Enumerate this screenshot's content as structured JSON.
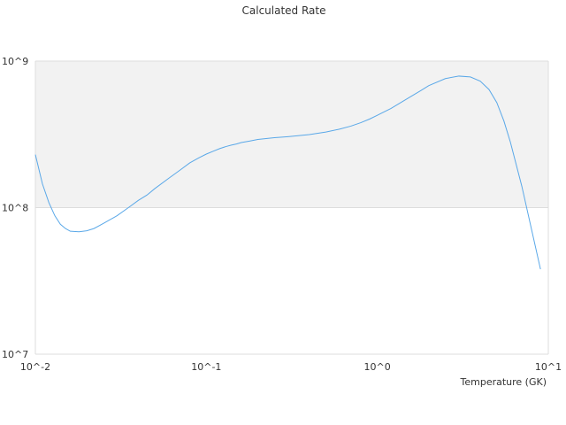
{
  "chart_data": {
    "type": "line",
    "title": "Calculated Rate",
    "xlabel": "Temperature (GK)",
    "ylabel": "",
    "x_scale": "log",
    "y_scale": "log",
    "xlim": [
      0.01,
      10
    ],
    "ylim": [
      10000000,
      1000000000
    ],
    "x_ticks": [
      {
        "value": 0.01,
        "label": "10^-2"
      },
      {
        "value": 0.1,
        "label": "10^-1"
      },
      {
        "value": 1,
        "label": "10^0"
      },
      {
        "value": 10,
        "label": "10^1"
      }
    ],
    "y_ticks": [
      {
        "value": 10000000,
        "label": "10^7"
      },
      {
        "value": 100000000,
        "label": "10^8"
      },
      {
        "value": 1000000000,
        "label": "10^9"
      }
    ],
    "shaded_band": {
      "from": 100000000,
      "to": 1000000000,
      "color": "#f2f2f2"
    },
    "series": [
      {
        "color": "#5aa8e8",
        "x": [
          0.01,
          0.011,
          0.012,
          0.013,
          0.014,
          0.015,
          0.016,
          0.018,
          0.02,
          0.022,
          0.025,
          0.03,
          0.035,
          0.04,
          0.045,
          0.05,
          0.06,
          0.07,
          0.08,
          0.09,
          0.1,
          0.11,
          0.12,
          0.13,
          0.14,
          0.15,
          0.16,
          0.18,
          0.2,
          0.25,
          0.3,
          0.4,
          0.5,
          0.6,
          0.7,
          0.8,
          0.9,
          1.0,
          1.2,
          1.5,
          1.8,
          2.0,
          2.5,
          3.0,
          3.5,
          4.0,
          4.5,
          5.0,
          5.5,
          6.0,
          7.0,
          8.0,
          9.0
        ],
        "y": [
          230000000,
          145000000,
          108000000,
          88000000,
          77000000,
          72000000,
          69000000,
          68500000,
          69500000,
          72000000,
          78000000,
          88000000,
          100000000,
          112000000,
          122000000,
          135000000,
          158000000,
          180000000,
          202000000,
          218000000,
          232000000,
          243000000,
          253000000,
          261000000,
          267000000,
          272000000,
          278000000,
          285000000,
          292000000,
          300000000,
          305000000,
          315000000,
          328000000,
          343000000,
          360000000,
          380000000,
          402000000,
          427000000,
          475000000,
          555000000,
          630000000,
          680000000,
          760000000,
          790000000,
          780000000,
          730000000,
          640000000,
          520000000,
          390000000,
          280000000,
          140000000,
          70000000,
          38000000
        ]
      }
    ]
  }
}
